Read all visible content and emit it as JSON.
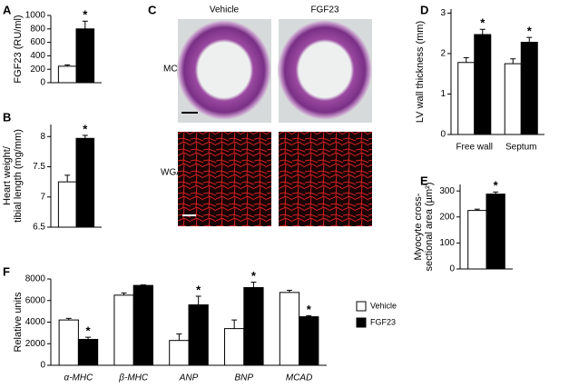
{
  "chart_data": [
    {
      "type": "bar",
      "panel": "A",
      "ylabel": [
        "FGF23 (RU/ml)"
      ],
      "ylim": [
        0,
        1000
      ],
      "yticks": [
        0,
        200,
        400,
        600,
        800,
        1000
      ],
      "series": [
        {
          "color": "#ffffff",
          "values": [
            245
          ],
          "errors": [
            20
          ],
          "markers": [
            null
          ]
        },
        {
          "color": "#000000",
          "values": [
            800
          ],
          "errors": [
            115
          ],
          "markers": [
            "*"
          ]
        }
      ]
    },
    {
      "type": "bar",
      "panel": "B",
      "ylabel": [
        "Heart weight/",
        "tibial length (mg/mm)"
      ],
      "ylim": [
        6.5,
        8.2
      ],
      "yticks": [
        6.5,
        7,
        7.5,
        8
      ],
      "series": [
        {
          "color": "#ffffff",
          "values": [
            7.25
          ],
          "errors": [
            0.11
          ],
          "markers": [
            null
          ]
        },
        {
          "color": "#000000",
          "values": [
            7.97
          ],
          "errors": [
            0.05
          ],
          "markers": [
            "*"
          ]
        }
      ]
    },
    {
      "type": "bar",
      "panel": "D",
      "ylabel": [
        "LV wall thickness (mm)"
      ],
      "categories": [
        "Free wall",
        "Septum"
      ],
      "ylim": [
        0,
        3.1
      ],
      "yticks": [
        0,
        1,
        2,
        3
      ],
      "series": [
        {
          "color": "#ffffff",
          "values": [
            1.78,
            1.75
          ],
          "errors": [
            0.12,
            0.12
          ],
          "markers": [
            null,
            null
          ]
        },
        {
          "color": "#000000",
          "values": [
            2.47,
            2.28
          ],
          "errors": [
            0.13,
            0.12
          ],
          "markers": [
            "*",
            "*"
          ]
        }
      ]
    },
    {
      "type": "bar",
      "panel": "E",
      "ylabel": [
        "Myocyte cross-",
        "sectional area (µm²)"
      ],
      "ylim": [
        0,
        325
      ],
      "yticks": [
        0,
        100,
        200,
        300
      ],
      "series": [
        {
          "color": "#ffffff",
          "values": [
            225
          ],
          "errors": [
            5
          ],
          "markers": [
            null
          ]
        },
        {
          "color": "#000000",
          "values": [
            288
          ],
          "errors": [
            8
          ],
          "markers": [
            "*"
          ]
        }
      ]
    },
    {
      "type": "bar",
      "panel": "F",
      "ylabel": [
        "Relative units"
      ],
      "categories": [
        "α-MHC",
        "β-MHC",
        "ANP",
        "BNP",
        "MCAD"
      ],
      "ylim": [
        0,
        8000
      ],
      "yticks": [
        0,
        2000,
        4000,
        6000,
        8000
      ],
      "legend": "right",
      "series": [
        {
          "name": "Vehicle",
          "color": "#ffffff",
          "values": [
            4200,
            6500,
            2300,
            3400,
            6750
          ],
          "errors": [
            150,
            200,
            600,
            800,
            200
          ],
          "markers": [
            null,
            null,
            null,
            null,
            null
          ]
        },
        {
          "name": "FGF23",
          "color": "#000000",
          "values": [
            2400,
            7400,
            5600,
            7200,
            4500
          ],
          "errors": [
            200,
            50,
            800,
            500,
            100
          ],
          "markers": [
            "*",
            null,
            "*",
            "*",
            "*"
          ]
        }
      ]
    }
  ],
  "image_panel": {
    "panel": "C",
    "columns": [
      "Vehicle",
      "FGF23"
    ],
    "rows": [
      "MC",
      "WGA"
    ]
  }
}
